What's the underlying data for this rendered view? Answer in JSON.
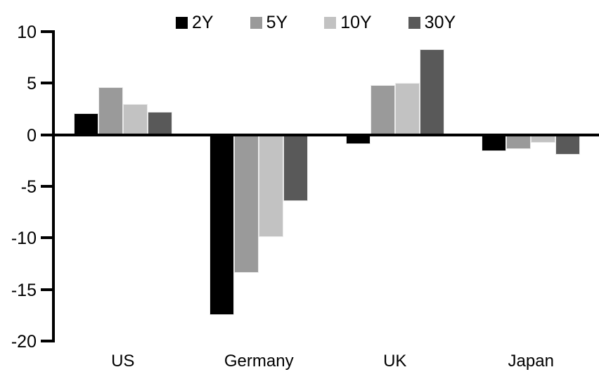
{
  "chart_data": {
    "type": "bar",
    "title": "",
    "xlabel": "",
    "ylabel": "",
    "categories": [
      "US",
      "Germany",
      "UK",
      "Japan"
    ],
    "series": [
      {
        "name": "2Y",
        "color": "#000000",
        "values": [
          2.1,
          -17.5,
          -0.9,
          -1.6
        ]
      },
      {
        "name": "5Y",
        "color": "#9a9a9a",
        "values": [
          4.6,
          -13.4,
          4.8,
          -1.4
        ]
      },
      {
        "name": "10Y",
        "color": "#c2c2c2",
        "values": [
          3.0,
          -9.9,
          5.0,
          -0.8
        ]
      },
      {
        "name": "30Y",
        "color": "#595959",
        "values": [
          2.2,
          -6.4,
          8.3,
          -1.9
        ]
      }
    ],
    "ylim": [
      -20,
      10
    ],
    "yticks": [
      10,
      5,
      0,
      -5,
      -10,
      -15,
      -20
    ],
    "grid": false,
    "legend_position": "top",
    "axis_color": "#000000",
    "background_color": "#ffffff"
  }
}
